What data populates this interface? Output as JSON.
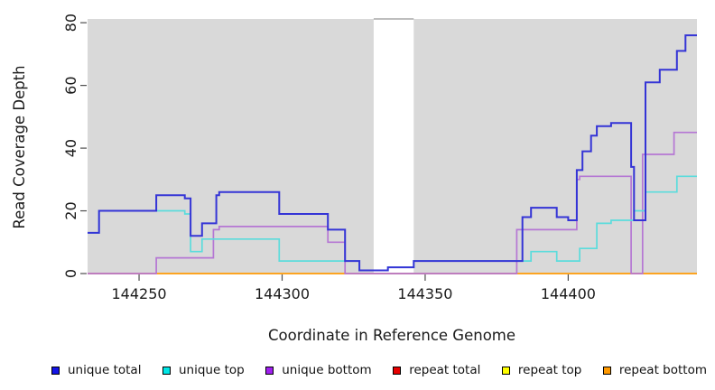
{
  "chart_data": {
    "type": "line",
    "step": true,
    "title": "",
    "xlabel": "Coordinate in Reference Genome",
    "ylabel": "Read Coverage Depth",
    "xlim": [
      144232,
      144445
    ],
    "ylim": [
      0,
      81.2
    ],
    "xticks": [
      144250,
      144300,
      144350,
      144400
    ],
    "yticks": [
      0,
      20,
      40,
      60,
      80
    ],
    "grid": false,
    "legend_position": "bottom",
    "plot_bg_color": "#d9d9d9",
    "tick_color": "#4d4d4d",
    "gap_region": {
      "from": 144332,
      "to": 144346,
      "fill": "#ffffff",
      "border_color": "#a8a8a8"
    },
    "series": [
      {
        "name": "unique total",
        "color": "#3434d6",
        "legend_fill": "#1414e6",
        "width": 2,
        "draw_order": 5,
        "steps": [
          [
            144232,
            13
          ],
          [
            144236,
            20
          ],
          [
            144256,
            25
          ],
          [
            144266,
            24
          ],
          [
            144268,
            12
          ],
          [
            144272,
            16
          ],
          [
            144277,
            25
          ],
          [
            144278,
            26
          ],
          [
            144299,
            19
          ],
          [
            144316,
            14
          ],
          [
            144322,
            4
          ],
          [
            144327,
            1
          ],
          [
            144337,
            2
          ],
          [
            144346,
            4
          ],
          [
            144384,
            18
          ],
          [
            144387,
            21
          ],
          [
            144396,
            18
          ],
          [
            144400,
            17
          ],
          [
            144403,
            33
          ],
          [
            144405,
            39
          ],
          [
            144408,
            44
          ],
          [
            144410,
            47
          ],
          [
            144415,
            48
          ],
          [
            144422,
            34
          ],
          [
            144423,
            17
          ],
          [
            144427,
            61
          ],
          [
            144432,
            65
          ],
          [
            144438,
            71
          ],
          [
            144441,
            76
          ]
        ]
      },
      {
        "name": "unique top",
        "color": "#5bdcdc",
        "legend_fill": "#00e6e6",
        "width": 1.7,
        "draw_order": 4,
        "steps": [
          [
            144232,
            13
          ],
          [
            144236,
            20
          ],
          [
            144266,
            19
          ],
          [
            144268,
            7
          ],
          [
            144272,
            11
          ],
          [
            144299,
            4
          ],
          [
            144327,
            1
          ],
          [
            144337,
            2
          ],
          [
            144346,
            4
          ],
          [
            144387,
            7
          ],
          [
            144396,
            4
          ],
          [
            144404,
            8
          ],
          [
            144410,
            16
          ],
          [
            144415,
            17
          ],
          [
            144423,
            20
          ],
          [
            144427,
            26
          ],
          [
            144438,
            31
          ]
        ]
      },
      {
        "name": "unique bottom",
        "color": "#b577d4",
        "legend_fill": "#a020f0",
        "width": 1.7,
        "draw_order": 3,
        "steps": [
          [
            144232,
            0
          ],
          [
            144256,
            5
          ],
          [
            144276,
            14
          ],
          [
            144278,
            15
          ],
          [
            144316,
            10
          ],
          [
            144322,
            0
          ],
          [
            144382,
            14
          ],
          [
            144403,
            30
          ],
          [
            144404,
            31
          ],
          [
            144422,
            0
          ],
          [
            144426,
            38
          ],
          [
            144437,
            45
          ]
        ]
      },
      {
        "name": "repeat total",
        "color": "#d94f5c",
        "legend_fill": "#e60000",
        "width": 1.7,
        "draw_order": 0,
        "steps": [
          [
            144232,
            0
          ]
        ]
      },
      {
        "name": "repeat top",
        "color": "#efef30",
        "legend_fill": "#ffff00",
        "width": 1.7,
        "draw_order": 1,
        "steps": [
          [
            144232,
            0
          ]
        ]
      },
      {
        "name": "repeat bottom",
        "color": "#ff9e1c",
        "legend_fill": "#ff9900",
        "width": 1.8,
        "draw_order": 2,
        "steps": [
          [
            144232,
            0
          ]
        ]
      }
    ]
  }
}
